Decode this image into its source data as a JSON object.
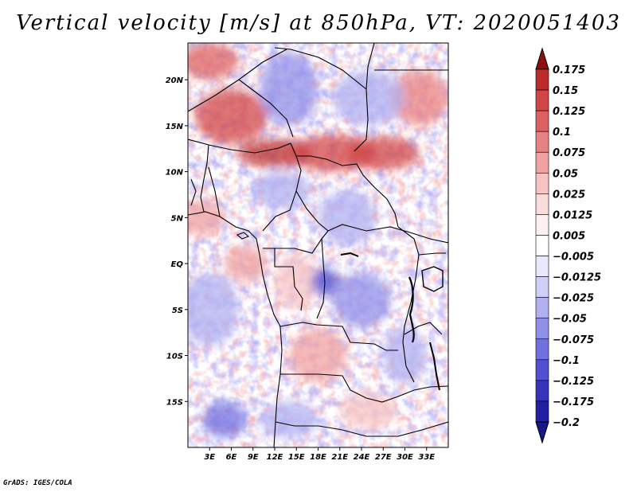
{
  "title": "Vertical velocity [m/s] at 850hPa, VT: 2020051403",
  "footer": "GrADS: IGES/COLA",
  "map": {
    "lon_range": [
      0,
      36
    ],
    "lat_range": [
      -20,
      24
    ],
    "x_ticks": [
      {
        "lon": 3,
        "label": "3E"
      },
      {
        "lon": 6,
        "label": "6E"
      },
      {
        "lon": 9,
        "label": "9E"
      },
      {
        "lon": 12,
        "label": "12E"
      },
      {
        "lon": 15,
        "label": "15E"
      },
      {
        "lon": 18,
        "label": "18E"
      },
      {
        "lon": 21,
        "label": "21E"
      },
      {
        "lon": 24,
        "label": "24E"
      },
      {
        "lon": 27,
        "label": "27E"
      },
      {
        "lon": 30,
        "label": "30E"
      },
      {
        "lon": 33,
        "label": "33E"
      }
    ],
    "y_ticks": [
      {
        "lat": 20,
        "label": "20N"
      },
      {
        "lat": 15,
        "label": "15N"
      },
      {
        "lat": 10,
        "label": "10N"
      },
      {
        "lat": 5,
        "label": "5N"
      },
      {
        "lat": 0,
        "label": "EQ"
      },
      {
        "lat": -5,
        "label": "5S"
      },
      {
        "lat": -10,
        "label": "10S"
      },
      {
        "lat": -15,
        "label": "15S"
      }
    ],
    "features": [
      {
        "lon": 3,
        "lat": 22,
        "rx": 4,
        "ry": 2,
        "v": 0.12
      },
      {
        "lon": 6,
        "lat": 16,
        "rx": 5,
        "ry": 3,
        "v": 0.14
      },
      {
        "lon": 12,
        "lat": 12,
        "rx": 5,
        "ry": 1.5,
        "v": 0.15
      },
      {
        "lon": 20,
        "lat": 12,
        "rx": 6,
        "ry": 2,
        "v": 0.13
      },
      {
        "lon": 27,
        "lat": 12,
        "rx": 5,
        "ry": 1.8,
        "v": 0.14
      },
      {
        "lon": 32,
        "lat": 18,
        "rx": 4,
        "ry": 3,
        "v": 0.08
      },
      {
        "lon": 14,
        "lat": 19,
        "rx": 4,
        "ry": 4,
        "v": -0.06
      },
      {
        "lon": 25,
        "lat": 18,
        "rx": 5,
        "ry": 3,
        "v": -0.05
      },
      {
        "lon": 2,
        "lat": 5,
        "rx": 3,
        "ry": 2,
        "v": 0.06
      },
      {
        "lon": 13,
        "lat": 8,
        "rx": 4,
        "ry": 2,
        "v": -0.05
      },
      {
        "lon": 22,
        "lat": 5,
        "rx": 4,
        "ry": 3,
        "v": -0.04
      },
      {
        "lon": 8,
        "lat": 0,
        "rx": 3,
        "ry": 2,
        "v": 0.05
      },
      {
        "lon": 15,
        "lat": -2,
        "rx": 3,
        "ry": 3,
        "v": 0.04
      },
      {
        "lon": 19,
        "lat": -2,
        "rx": 2,
        "ry": 1.5,
        "v": -0.12
      },
      {
        "lon": 24,
        "lat": -4,
        "rx": 4,
        "ry": 3,
        "v": -0.06
      },
      {
        "lon": 3,
        "lat": -5,
        "rx": 4,
        "ry": 4,
        "v": -0.03
      },
      {
        "lon": 18,
        "lat": -10,
        "rx": 4,
        "ry": 3,
        "v": 0.05
      },
      {
        "lon": 30,
        "lat": -10,
        "rx": 3,
        "ry": 3,
        "v": -0.04
      },
      {
        "lon": 5,
        "lat": -17,
        "rx": 3,
        "ry": 2,
        "v": -0.08
      },
      {
        "lon": 14,
        "lat": -17,
        "rx": 4,
        "ry": 2,
        "v": -0.05
      },
      {
        "lon": 25,
        "lat": -16,
        "rx": 4,
        "ry": 2,
        "v": 0.03
      }
    ]
  },
  "colorbar": {
    "levels": [
      {
        "label": "0.175",
        "color": "#a0181a"
      },
      {
        "label": "0.15",
        "color": "#bc2b2b"
      },
      {
        "label": "0.125",
        "color": "#d14545"
      },
      {
        "label": "0.1",
        "color": "#de6161"
      },
      {
        "label": "0.075",
        "color": "#e88282"
      },
      {
        "label": "0.05",
        "color": "#f0a1a1"
      },
      {
        "label": "0.025",
        "color": "#f7c4c4"
      },
      {
        "label": "0.0125",
        "color": "#fbdcdc"
      },
      {
        "label": "0.005",
        "color": "#fdf0f0"
      },
      {
        "label": "−0.005",
        "color": "#ffffff"
      },
      {
        "label": "−0.0125",
        "color": "#e8e8fb"
      },
      {
        "label": "−0.025",
        "color": "#cfcff7"
      },
      {
        "label": "−0.05",
        "color": "#b0b0f1"
      },
      {
        "label": "−0.075",
        "color": "#9090ea"
      },
      {
        "label": "−0.1",
        "color": "#7070e0"
      },
      {
        "label": "−0.125",
        "color": "#5050d2"
      },
      {
        "label": "−0.175",
        "color": "#3535bc"
      },
      {
        "label": "−0.2",
        "color": "#2020a2"
      }
    ],
    "top_color": "#8a1012",
    "bottom_color": "#18188a"
  },
  "colors": {
    "border": "#000000",
    "coast": "#000000"
  }
}
